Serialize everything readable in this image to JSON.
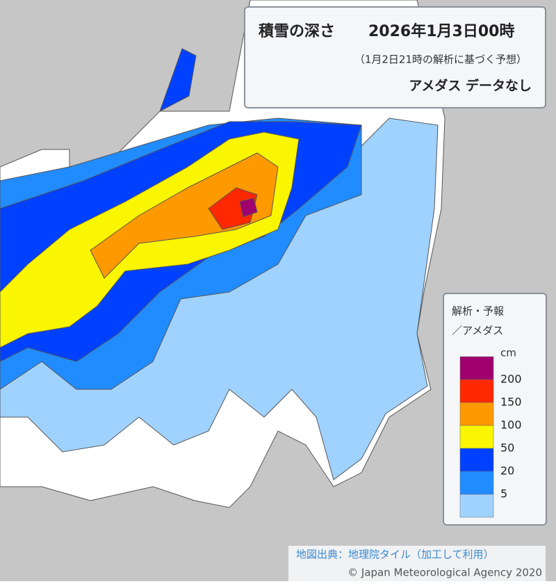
{
  "header": {
    "title": "積雪の深さ",
    "datetime": "2026年1月3日00時",
    "basis": "（1月2日21時の解析に基づく予想）",
    "amedas_note": "アメダス データなし"
  },
  "legend": {
    "title": "解析・予報",
    "subtitle": "／アメダス",
    "unit": "cm",
    "colors": [
      "#a0006e",
      "#ff2800",
      "#ff9900",
      "#faf500",
      "#0041ff",
      "#218cff",
      "#a0d2ff"
    ],
    "levels": [
      200,
      150,
      100,
      50,
      20,
      5
    ]
  },
  "credits": {
    "map_source": "地図出典：地理院タイル（加工して利用）",
    "copyright": "© Japan Meteorological Agency 2020"
  }
}
